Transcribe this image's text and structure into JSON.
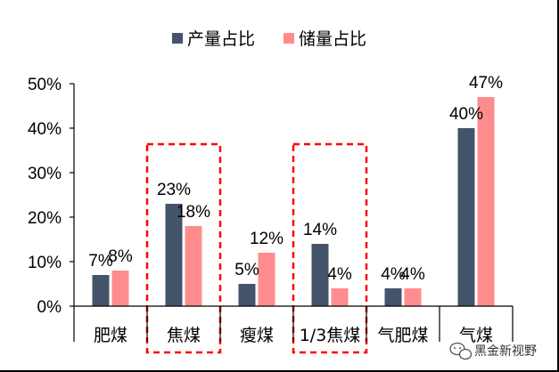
{
  "chart_data": {
    "type": "bar",
    "categories": [
      "肥煤",
      "焦煤",
      "瘦煤",
      "1/3焦煤",
      "气肥煤",
      "气煤"
    ],
    "series": [
      {
        "name": "产量占比",
        "values": [
          7,
          23,
          5,
          14,
          4,
          40
        ],
        "labels": [
          "7%",
          "23%",
          "5%",
          "14%",
          "4%",
          "40%"
        ],
        "color": "#44546A"
      },
      {
        "name": "储量占比",
        "values": [
          8,
          18,
          12,
          4,
          4,
          47
        ],
        "labels": [
          "8%",
          "18%",
          "12%",
          "4%",
          "4%",
          "47%"
        ],
        "color": "#FF8C8C"
      }
    ],
    "y_ticks": [
      "0%",
      "10%",
      "20%",
      "30%",
      "40%",
      "50%"
    ],
    "ylim": [
      0,
      50
    ],
    "legend_position": "top",
    "highlighted_categories": [
      "焦煤",
      "1/3焦煤"
    ],
    "highlight_color": "#FF0000",
    "grid": false
  },
  "watermark": {
    "text": "黑金新视野",
    "icon": "wechat-icon"
  }
}
